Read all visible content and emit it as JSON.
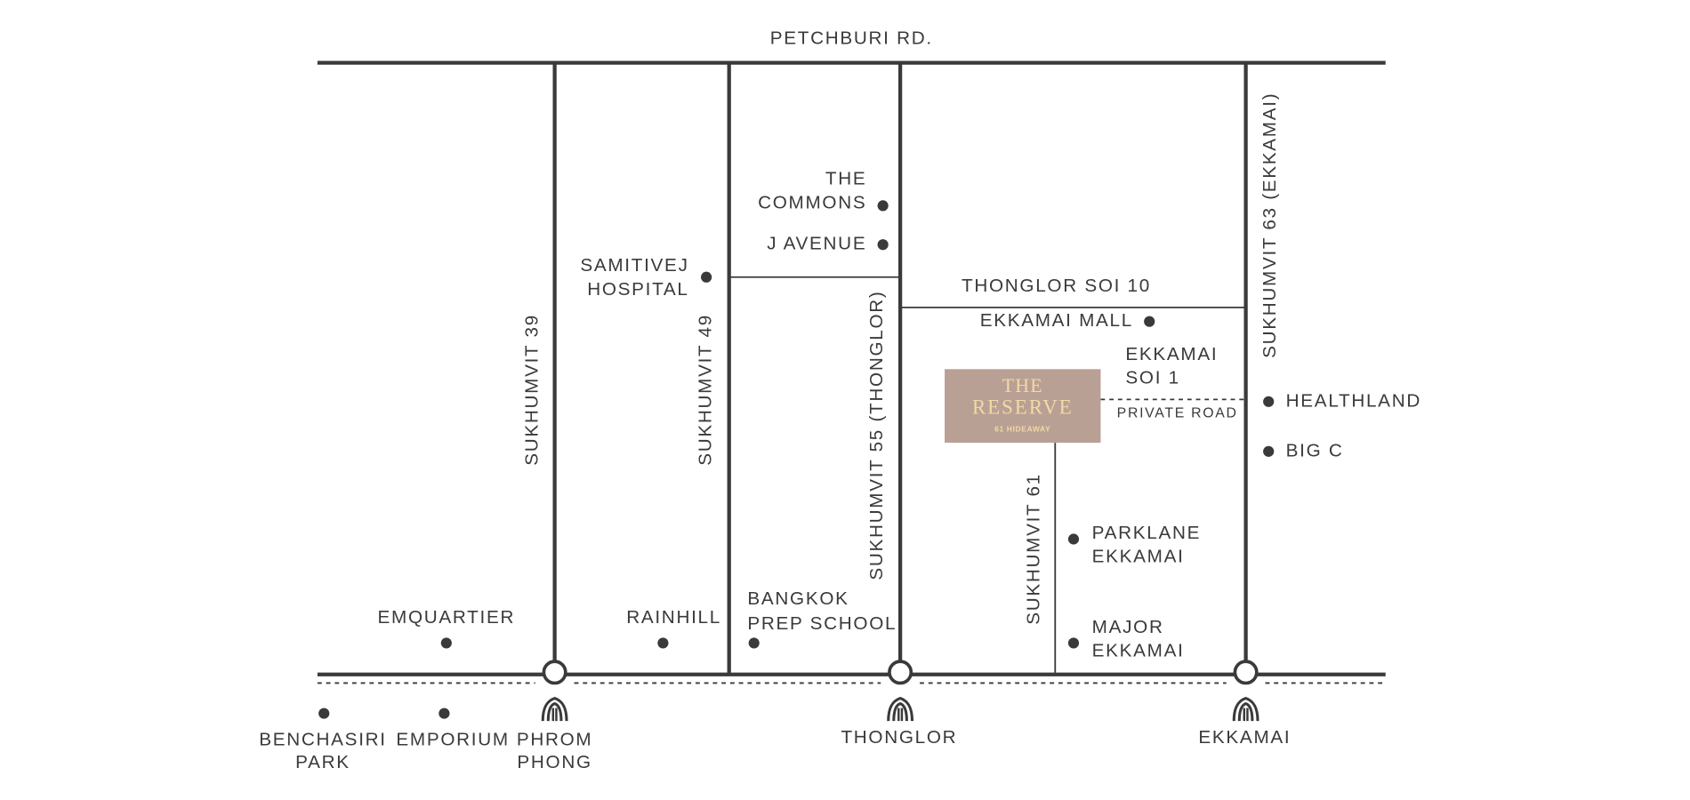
{
  "roads": [
    "PETCHBURI RD.",
    "SUKHUMVIT 39",
    "SUKHUMVIT 49",
    "SUKHUMVIT 55 (THONGLOR)",
    "SUKHUMVIT 63 (EKKAMAI)",
    "SUKHUMVIT 61",
    "THONGLOR SOI 10"
  ],
  "ekkamai_soi_1": [
    "EKKAMAI",
    "SOI 1"
  ],
  "private_road": "PRIVATE ROAD",
  "places": [
    [
      "THE",
      "COMMONS"
    ],
    [
      "J AVENUE"
    ],
    [
      "SAMITIVEJ",
      "HOSPITAL"
    ],
    [
      "EKKAMAI MALL"
    ],
    [
      "HEALTHLAND"
    ],
    [
      "BIG C"
    ],
    [
      "PARKLANE",
      "EKKAMAI"
    ],
    [
      "MAJOR",
      "EKKAMAI"
    ],
    [
      "EMQUARTIER"
    ],
    [
      "RAINHILL"
    ],
    [
      "BANGKOK",
      "PREP SCHOOL"
    ],
    [
      "BENCHASIRI",
      "PARK"
    ],
    [
      "EMPORIUM"
    ]
  ],
  "stations": [
    [
      "PHROM",
      "PHONG"
    ],
    [
      "THONGLOR"
    ],
    [
      "EKKAMAI"
    ]
  ],
  "logo": {
    "title": "THE",
    "name": "RESERVE",
    "tagline": "61 HIDEAWAY"
  }
}
